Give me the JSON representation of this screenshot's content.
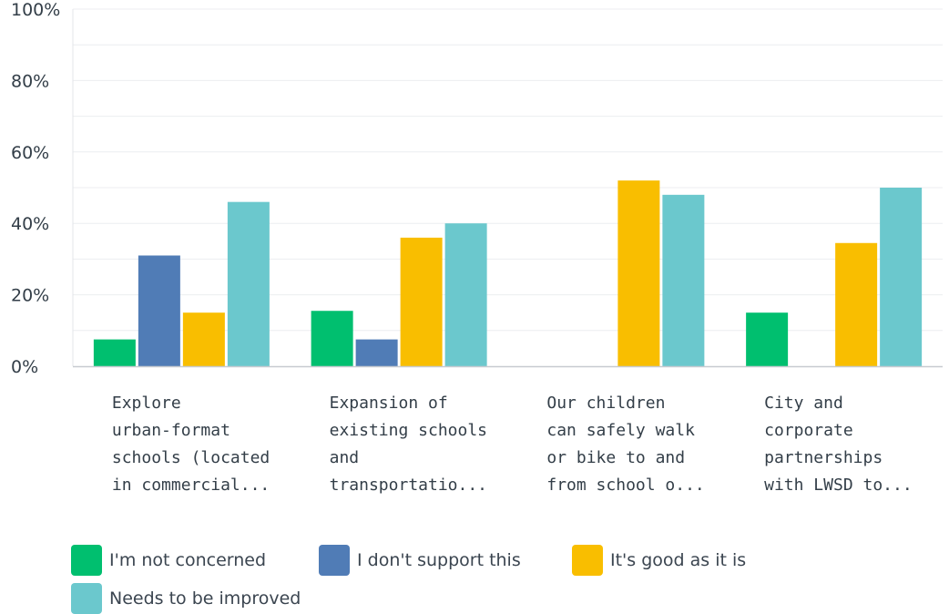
{
  "chart_data": {
    "type": "bar",
    "categories": [
      [
        "Explore",
        "urban-format",
        "schools (located",
        "in commercial..."
      ],
      [
        "Expansion of",
        "existing schools",
        "and",
        "transportatio..."
      ],
      [
        "Our children",
        "can safely walk",
        "or bike to and",
        "from school o..."
      ],
      [
        "City and",
        "corporate",
        "partnerships",
        "with LWSD to..."
      ]
    ],
    "series": [
      {
        "name": "I'm not concerned",
        "color": "#00bf6f",
        "values": [
          7.5,
          15.5,
          0,
          15
        ]
      },
      {
        "name": "I don't support this",
        "color": "#507cb6",
        "values": [
          31,
          7.5,
          0,
          0
        ]
      },
      {
        "name": "It's good as it is",
        "color": "#f9be00",
        "values": [
          15,
          36,
          52,
          34.5
        ]
      },
      {
        "name": "Needs to be improved",
        "color": "#6bc8cd",
        "values": [
          46,
          40,
          48,
          50
        ]
      }
    ],
    "ylim": [
      0,
      100
    ],
    "yticks": [
      0,
      20,
      40,
      60,
      80,
      100
    ],
    "ytick_labels": [
      "0%",
      "20%",
      "40%",
      "60%",
      "80%",
      "100%"
    ],
    "grid": true,
    "legend_position": "bottom"
  }
}
